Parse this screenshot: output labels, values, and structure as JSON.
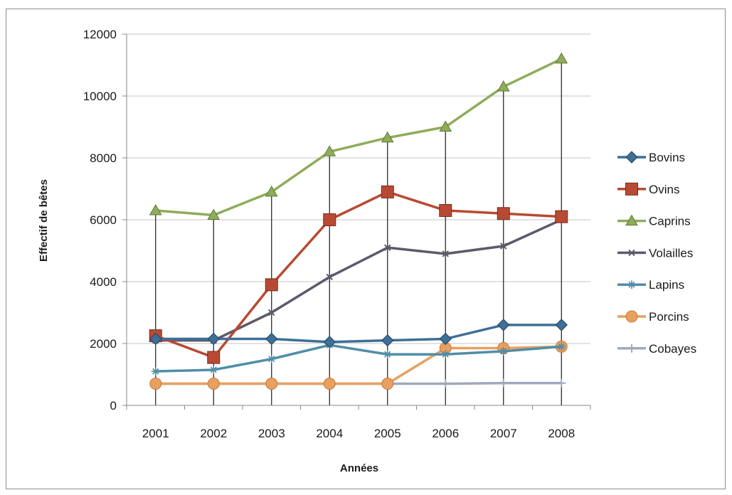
{
  "chart_data": {
    "type": "line",
    "title": "",
    "xlabel": "Années",
    "ylabel": "Effectif de bêtes",
    "categories": [
      "2001",
      "2002",
      "2003",
      "2004",
      "2005",
      "2006",
      "2007",
      "2008"
    ],
    "ylim": [
      0,
      12000
    ],
    "yticks": [
      0,
      2000,
      4000,
      6000,
      8000,
      10000,
      12000
    ],
    "grid": "horizontal",
    "drop_lines": true,
    "legend_position": "right",
    "series": [
      {
        "name": "Bovins",
        "color": "#3e6f97",
        "marker": "diamond",
        "values": [
          2150,
          2150,
          2150,
          2050,
          2100,
          2150,
          2600,
          2600
        ]
      },
      {
        "name": "Ovins",
        "color": "#b84a33",
        "marker": "square",
        "values": [
          2250,
          1550,
          3900,
          6000,
          6900,
          6300,
          6200,
          6100
        ]
      },
      {
        "name": "Caprins",
        "color": "#8fac5a",
        "marker": "triangle",
        "values": [
          6300,
          6150,
          6900,
          8200,
          8650,
          9000,
          10300,
          11200
        ]
      },
      {
        "name": "Volailles",
        "color": "#5c5a6a",
        "marker": "x",
        "values": [
          2100,
          2100,
          3000,
          4150,
          5100,
          4900,
          5150,
          6000
        ]
      },
      {
        "name": "Lapins",
        "color": "#4f8ea8",
        "marker": "star",
        "values": [
          1100,
          1150,
          1500,
          1950,
          1650,
          1650,
          1750,
          1900
        ]
      },
      {
        "name": "Porcins",
        "color": "#e8a060",
        "marker": "circle",
        "values": [
          700,
          700,
          700,
          700,
          700,
          1850,
          1850,
          1900
        ]
      },
      {
        "name": "Cobayes",
        "color": "#a0a8bc",
        "marker": "plus",
        "values": [
          700,
          700,
          700,
          700,
          700,
          700,
          720,
          720
        ]
      }
    ]
  }
}
